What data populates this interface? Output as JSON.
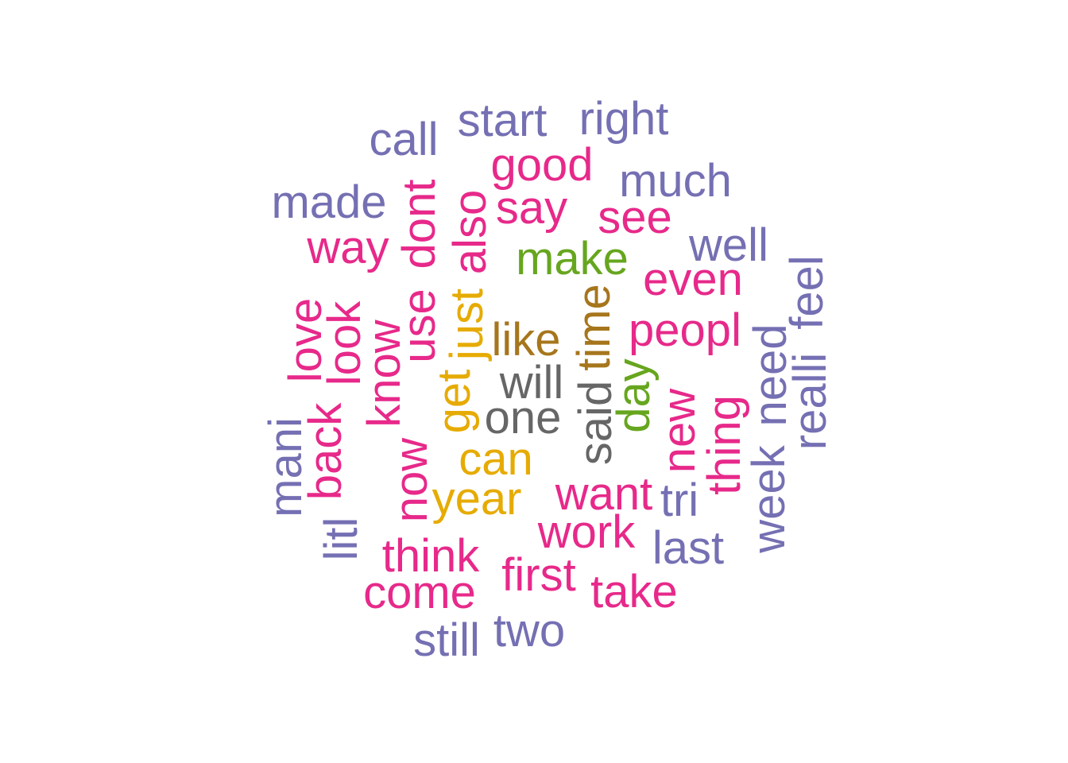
{
  "palette": {
    "purple": "#7570B3",
    "pink": "#E7298A",
    "green": "#66A61E",
    "gold": "#E6AB02",
    "brown": "#A6761D",
    "grey": "#666666"
  },
  "words": [
    {
      "text": "start",
      "color": "purple",
      "vertical": false
    },
    {
      "text": "right",
      "color": "purple",
      "vertical": false
    },
    {
      "text": "call",
      "color": "purple",
      "vertical": false
    },
    {
      "text": "good",
      "color": "pink",
      "vertical": false
    },
    {
      "text": "much",
      "color": "purple",
      "vertical": false
    },
    {
      "text": "made",
      "color": "purple",
      "vertical": false
    },
    {
      "text": "dont",
      "color": "pink",
      "vertical": true
    },
    {
      "text": "also",
      "color": "pink",
      "vertical": true
    },
    {
      "text": "say",
      "color": "pink",
      "vertical": false
    },
    {
      "text": "see",
      "color": "pink",
      "vertical": false
    },
    {
      "text": "way",
      "color": "pink",
      "vertical": false
    },
    {
      "text": "well",
      "color": "purple",
      "vertical": false
    },
    {
      "text": "make",
      "color": "green",
      "vertical": false
    },
    {
      "text": "even",
      "color": "pink",
      "vertical": false
    },
    {
      "text": "feel",
      "color": "purple",
      "vertical": true
    },
    {
      "text": "use",
      "color": "pink",
      "vertical": true
    },
    {
      "text": "just",
      "color": "gold",
      "vertical": true
    },
    {
      "text": "time",
      "color": "brown",
      "vertical": true
    },
    {
      "text": "love",
      "color": "pink",
      "vertical": true
    },
    {
      "text": "look",
      "color": "pink",
      "vertical": true
    },
    {
      "text": "know",
      "color": "pink",
      "vertical": true
    },
    {
      "text": "like",
      "color": "brown",
      "vertical": false
    },
    {
      "text": "peopl",
      "color": "pink",
      "vertical": false
    },
    {
      "text": "realli",
      "color": "purple",
      "vertical": true
    },
    {
      "text": "need",
      "color": "purple",
      "vertical": true
    },
    {
      "text": "will",
      "color": "grey",
      "vertical": false
    },
    {
      "text": "get",
      "color": "gold",
      "vertical": true
    },
    {
      "text": "day",
      "color": "green",
      "vertical": true
    },
    {
      "text": "said",
      "color": "grey",
      "vertical": true
    },
    {
      "text": "one",
      "color": "grey",
      "vertical": false
    },
    {
      "text": "mani",
      "color": "purple",
      "vertical": true
    },
    {
      "text": "back",
      "color": "pink",
      "vertical": true
    },
    {
      "text": "new",
      "color": "pink",
      "vertical": true
    },
    {
      "text": "thing",
      "color": "pink",
      "vertical": true
    },
    {
      "text": "can",
      "color": "gold",
      "vertical": false
    },
    {
      "text": "now",
      "color": "pink",
      "vertical": true
    },
    {
      "text": "week",
      "color": "purple",
      "vertical": true
    },
    {
      "text": "year",
      "color": "gold",
      "vertical": false
    },
    {
      "text": "want",
      "color": "pink",
      "vertical": false
    },
    {
      "text": "tri",
      "color": "purple",
      "vertical": false
    },
    {
      "text": "work",
      "color": "pink",
      "vertical": false
    },
    {
      "text": "litl",
      "color": "purple",
      "vertical": true
    },
    {
      "text": "last",
      "color": "purple",
      "vertical": false
    },
    {
      "text": "think",
      "color": "pink",
      "vertical": false
    },
    {
      "text": "first",
      "color": "pink",
      "vertical": false
    },
    {
      "text": "come",
      "color": "pink",
      "vertical": false
    },
    {
      "text": "take",
      "color": "pink",
      "vertical": false
    },
    {
      "text": "two",
      "color": "purple",
      "vertical": false
    },
    {
      "text": "still",
      "color": "purple",
      "vertical": false
    }
  ]
}
